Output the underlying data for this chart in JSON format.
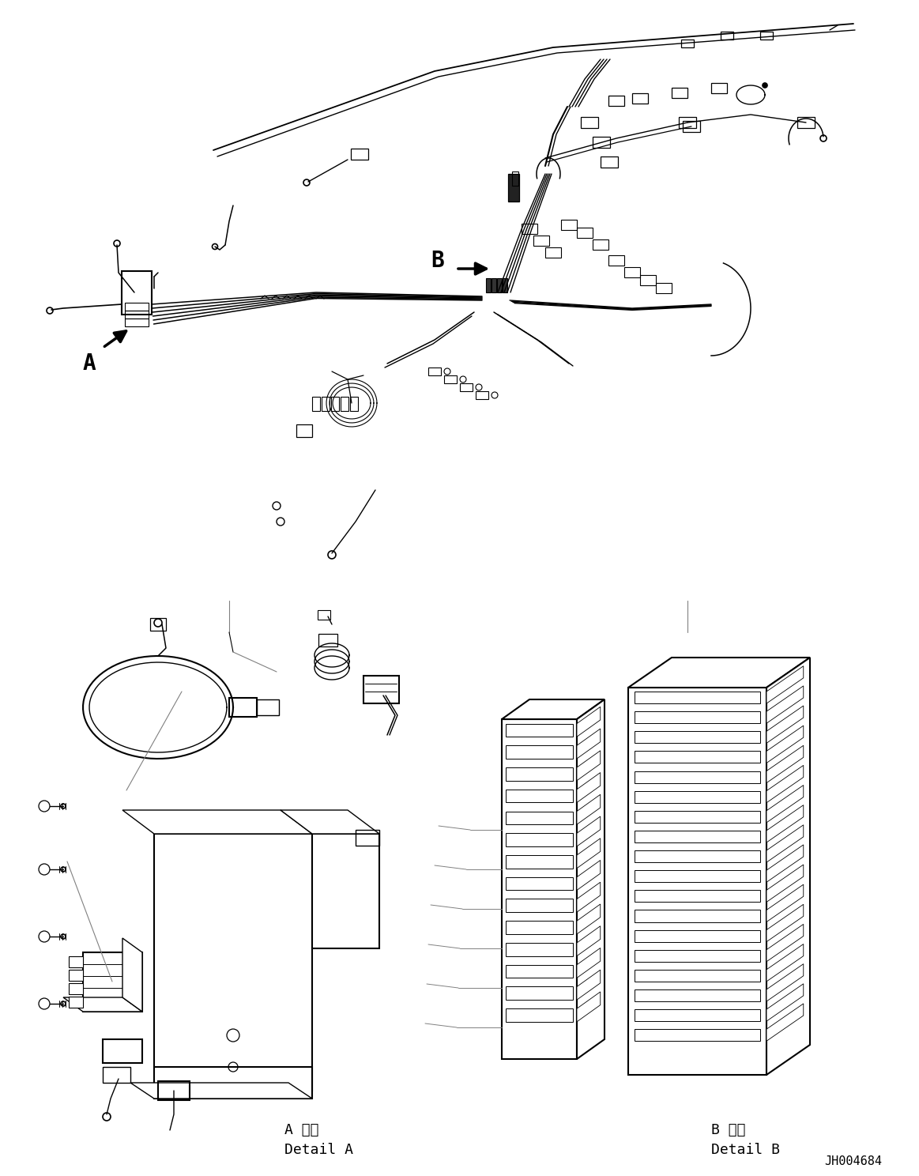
{
  "background_color": "#ffffff",
  "line_color": "#000000",
  "figsize": [
    11.63,
    14.88
  ],
  "dpi": 100,
  "part_id": "JH004684",
  "label_A": "A",
  "label_B": "B",
  "detail_A_jp": "A 詳細",
  "detail_A_en": "Detail A",
  "detail_B_jp": "B 詳細",
  "detail_B_en": "Detail B",
  "font_family": "monospace",
  "font_size_label": 20,
  "font_size_detail": 13,
  "font_size_id": 11
}
